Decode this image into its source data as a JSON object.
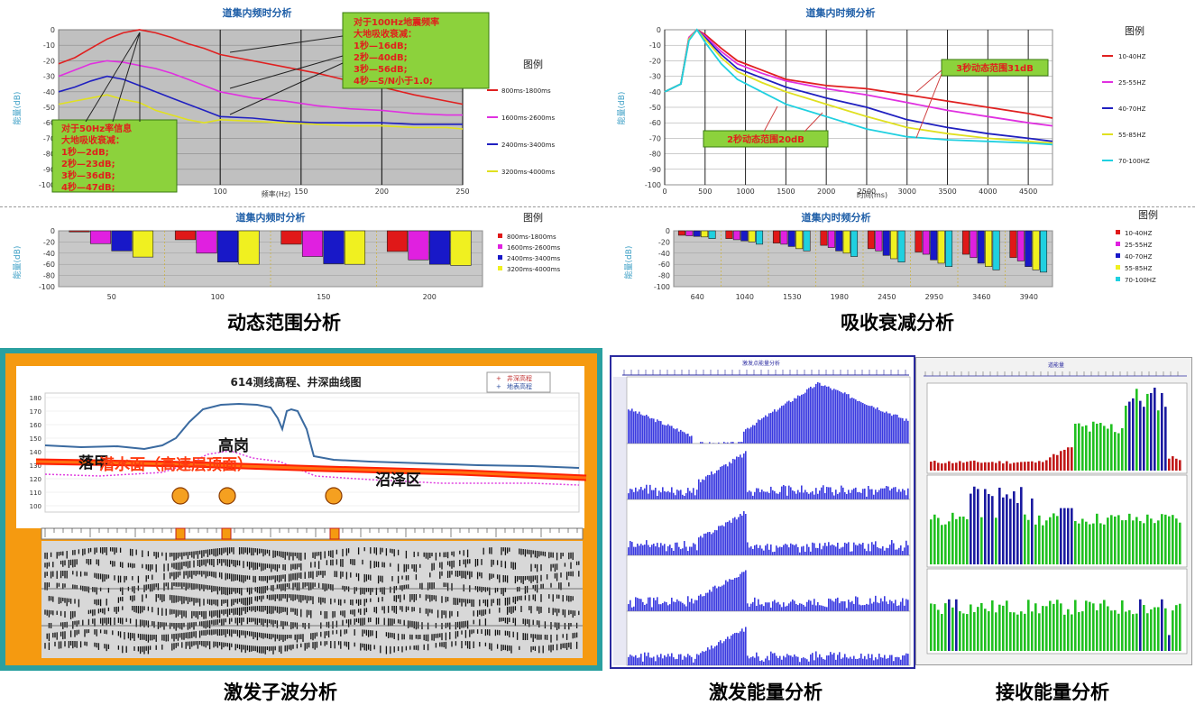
{
  "captions": {
    "dynamic": "动态范围分析",
    "absorb": "吸收衰减分析",
    "wavelet": "激发子波分析",
    "excite_energy": "激发能量分析",
    "receive_energy": "接收能量分析"
  },
  "chart_data": [
    {
      "id": "freq-decay",
      "type": "line",
      "title": "道集内频时分析",
      "xlabel": "频率(Hz)",
      "ylabel": "能量(dB)",
      "xlim": [
        0,
        250
      ],
      "ylim": [
        -100,
        0
      ],
      "x_ticks": [
        "100",
        "150",
        "200",
        "250"
      ],
      "y_ticks": [
        "0",
        "-10",
        "-20",
        "-30",
        "-40",
        "-50",
        "-60",
        "-70",
        "-80",
        "-90",
        "-100"
      ],
      "legend_title": "图例",
      "x": [
        0,
        10,
        20,
        30,
        40,
        50,
        60,
        70,
        80,
        90,
        100,
        120,
        140,
        160,
        180,
        200,
        220,
        240,
        250
      ],
      "series": [
        {
          "name": "800ms-1800ms",
          "color": "#e02020",
          "values": [
            -22,
            -18,
            -12,
            -6,
            -2,
            0,
            -2,
            -5,
            -9,
            -12,
            -16,
            -20,
            -24,
            -28,
            -33,
            -37,
            -42,
            -46,
            -48
          ]
        },
        {
          "name": "1600ms-2600ms",
          "color": "#e030e0",
          "values": [
            -30,
            -26,
            -22,
            -20,
            -21,
            -23,
            -25,
            -28,
            -32,
            -36,
            -40,
            -44,
            -46,
            -49,
            -51,
            -52,
            -54,
            -55,
            -55
          ]
        },
        {
          "name": "2400ms-3400ms",
          "color": "#2020c0",
          "values": [
            -40,
            -37,
            -33,
            -30,
            -32,
            -36,
            -40,
            -44,
            -48,
            -52,
            -56,
            -57,
            -59,
            -60,
            -60,
            -60,
            -61,
            -61,
            -61
          ]
        },
        {
          "name": "3200ms-4000ms",
          "color": "#e0e020",
          "values": [
            -48,
            -46,
            -44,
            -42,
            -45,
            -47,
            -52,
            -55,
            -58,
            -60,
            -58,
            -59,
            -60,
            -61,
            -62,
            -62,
            -63,
            -63,
            -64
          ]
        }
      ],
      "notes": [
        {
          "lines": [
            "对于100Hz地震频率",
            "大地吸收衰减：",
            "1秒—16dB;",
            "2秒—40dB;",
            "3秒—56dB;",
            "4秒—S/N小于1.0;"
          ]
        },
        {
          "lines": [
            "对于50Hz率信息",
            "大地吸收衰减：",
            "1秒—2dB;",
            "2秒—23dB;",
            "3秒—36dB;",
            "4秒—47dB;"
          ]
        }
      ]
    },
    {
      "id": "time-decay",
      "type": "line",
      "title": "道集内时频分析",
      "xlabel": "时间(ms)",
      "ylabel": "能量(dB)",
      "xlim": [
        0,
        4800
      ],
      "ylim": [
        -100,
        0
      ],
      "x_ticks": [
        "0",
        "500",
        "1000",
        "1500",
        "2000",
        "2500",
        "3000",
        "3500",
        "4000",
        "4500"
      ],
      "y_ticks": [
        "0",
        "-10",
        "-20",
        "-30",
        "-40",
        "-50",
        "-60",
        "-70",
        "-80",
        "-90",
        "-100"
      ],
      "legend_title": "图例",
      "x": [
        0,
        200,
        300,
        400,
        500,
        700,
        900,
        1200,
        1500,
        2000,
        2500,
        3000,
        3500,
        4000,
        4500,
        4800
      ],
      "series": [
        {
          "name": "10-40HZ",
          "color": "#e02020",
          "values": [
            -40,
            -35,
            -5,
            0,
            -3,
            -12,
            -20,
            -26,
            -32,
            -36,
            -38,
            -42,
            -46,
            -50,
            -54,
            -57
          ]
        },
        {
          "name": "25-55HZ",
          "color": "#e030e0",
          "values": [
            -40,
            -35,
            -5,
            0,
            -4,
            -14,
            -22,
            -28,
            -33,
            -38,
            -42,
            -47,
            -52,
            -56,
            -60,
            -62
          ]
        },
        {
          "name": "40-70HZ",
          "color": "#2020c0",
          "values": [
            -40,
            -35,
            -6,
            0,
            -5,
            -16,
            -25,
            -31,
            -37,
            -44,
            -50,
            -58,
            -63,
            -67,
            -70,
            -72
          ]
        },
        {
          "name": "55-85HZ",
          "color": "#e0e020",
          "values": [
            -40,
            -35,
            -6,
            0,
            -6,
            -18,
            -27,
            -34,
            -40,
            -48,
            -56,
            -63,
            -67,
            -70,
            -72,
            -73
          ]
        },
        {
          "name": "70-100HZ",
          "color": "#20d0e0",
          "values": [
            -40,
            -35,
            -7,
            0,
            -8,
            -22,
            -32,
            -40,
            -48,
            -56,
            -64,
            -69,
            -71,
            -72,
            -73,
            -74
          ]
        }
      ],
      "notes": [
        "3秒动态范围31dB",
        "2秒动态范围20dB"
      ]
    },
    {
      "id": "freq-bars",
      "type": "bar",
      "title": "道集内频时分析",
      "ylabel": "能量(dB)",
      "ylim": [
        -100,
        0
      ],
      "y_ticks": [
        "0",
        "-20",
        "-40",
        "-60",
        "-80",
        "-100"
      ],
      "categories": [
        "50",
        "100",
        "150",
        "200"
      ],
      "legend_title": "图例",
      "series": [
        {
          "name": "800ms-1800ms",
          "color": "#e01818",
          "values": [
            -2,
            -16,
            -24,
            -37
          ]
        },
        {
          "name": "1600ms-2600ms",
          "color": "#e020e0",
          "values": [
            -23,
            -40,
            -46,
            -52
          ]
        },
        {
          "name": "2400ms-3400ms",
          "color": "#1818c8",
          "values": [
            -36,
            -56,
            -59,
            -60
          ]
        },
        {
          "name": "3200ms-4000ms",
          "color": "#f0f020",
          "values": [
            -47,
            -60,
            -60,
            -62
          ]
        }
      ]
    },
    {
      "id": "time-bars",
      "type": "bar",
      "title": "道集内时频分析",
      "ylabel": "能量(dB)",
      "ylim": [
        -100,
        0
      ],
      "y_ticks": [
        "0",
        "-20",
        "-40",
        "-60",
        "-80",
        "-100"
      ],
      "categories": [
        "640",
        "1040",
        "1530",
        "1980",
        "2450",
        "2950",
        "3460",
        "3940"
      ],
      "legend_title": "图例",
      "series": [
        {
          "name": "10-40HZ",
          "color": "#e01818",
          "values": [
            -8,
            -14,
            -22,
            -26,
            -32,
            -38,
            -42,
            -48
          ]
        },
        {
          "name": "25-55HZ",
          "color": "#e020e0",
          "values": [
            -9,
            -16,
            -24,
            -30,
            -36,
            -42,
            -48,
            -54
          ]
        },
        {
          "name": "40-70HZ",
          "color": "#1818c8",
          "values": [
            -10,
            -18,
            -28,
            -36,
            -44,
            -52,
            -58,
            -64
          ]
        },
        {
          "name": "55-85HZ",
          "color": "#f0f020",
          "values": [
            -11,
            -20,
            -32,
            -40,
            -50,
            -58,
            -64,
            -70
          ]
        },
        {
          "name": "70-100HZ",
          "color": "#20d0e0",
          "values": [
            -14,
            -24,
            -36,
            -46,
            -56,
            -64,
            -70,
            -74
          ]
        }
      ]
    }
  ],
  "wavelet": {
    "title": "614测线高程、井深曲线图",
    "legend": [
      "井深高程",
      "地表高程"
    ],
    "y_ticks": [
      "180",
      "170",
      "160",
      "150",
      "140",
      "130",
      "120",
      "110",
      "100"
    ],
    "labels": {
      "hill": "高岗",
      "sand": "沼泽区",
      "surface": "潜水面（高速层顶面）",
      "left": "落甲"
    }
  },
  "excite_energy": {
    "title": "激发点能量分析"
  },
  "receive_energy": {
    "title": "道能量"
  }
}
